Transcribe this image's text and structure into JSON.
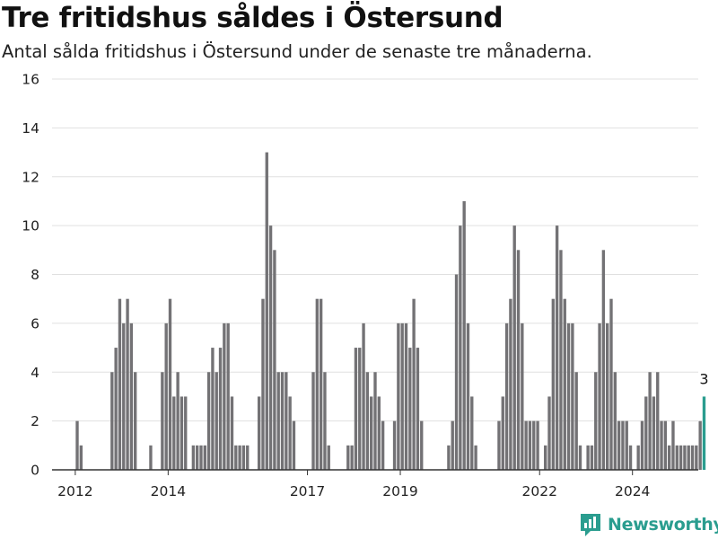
{
  "header": {
    "title": "Tre fritidshus såldes i Östersund",
    "subtitle": "Antal sålda fritidshus i Östersund under de senaste tre månaderna."
  },
  "brand": {
    "name": "Newsworthy",
    "icon": "chart-logo-icon"
  },
  "colors": {
    "bar": "#737275",
    "highlight": "#2a9d8f",
    "grid": "#e0e0e0",
    "axis": "#333333"
  },
  "chart_data": {
    "type": "bar",
    "title": "Tre fritidshus såldes i Östersund",
    "subtitle": "Antal sålda fritidshus i Östersund under de senaste tre månaderna.",
    "ylim": [
      0,
      16
    ],
    "yticks": [
      0,
      2,
      4,
      6,
      8,
      10,
      12,
      14,
      16
    ],
    "x_range": [
      "2011-07",
      "2025-06"
    ],
    "xticks": [
      {
        "label": "2012",
        "date": "2012-01"
      },
      {
        "label": "2014",
        "date": "2014-01"
      },
      {
        "label": "2017",
        "date": "2017-01"
      },
      {
        "label": "2019",
        "date": "2019-01"
      },
      {
        "label": "2022",
        "date": "2022-01"
      },
      {
        "label": "2024",
        "date": "2024-01"
      }
    ],
    "grid": true,
    "series": [
      {
        "start": "2012-01",
        "values": [
          2,
          1,
          0,
          0,
          0,
          0,
          0,
          0,
          0,
          4,
          5,
          7,
          6,
          7,
          6,
          4,
          0,
          0,
          0,
          1,
          0,
          0,
          4,
          6,
          7,
          3,
          4,
          3,
          3,
          0,
          1,
          1,
          1,
          1,
          4,
          5,
          4,
          5,
          6,
          6,
          3,
          1,
          1,
          1,
          1,
          0,
          0,
          3,
          7,
          13,
          10,
          9,
          4,
          4,
          4,
          3,
          2,
          0,
          0,
          0,
          0,
          4,
          7,
          7,
          4,
          1,
          0,
          0,
          0,
          0,
          1,
          1,
          5,
          5,
          6,
          4,
          3,
          4,
          3,
          2,
          0,
          0,
          2,
          6,
          6,
          6,
          5,
          7,
          5,
          2,
          0,
          0,
          0,
          0,
          0,
          0,
          1,
          2,
          8,
          10,
          11,
          6,
          3,
          1,
          0,
          0,
          0,
          0,
          0,
          2,
          3,
          6,
          7,
          10,
          9,
          6,
          2,
          2,
          2,
          2,
          0,
          1,
          3,
          7,
          10,
          9,
          7,
          6,
          6,
          4,
          1,
          0,
          1,
          1,
          4,
          6,
          9,
          6,
          7,
          4,
          2,
          2,
          2,
          1,
          0,
          1,
          2,
          3,
          4,
          3,
          4,
          2,
          2,
          1,
          2,
          1,
          1,
          1,
          1,
          1,
          1,
          2,
          3
        ],
        "highlight_last": true,
        "last_label": "3"
      }
    ]
  }
}
